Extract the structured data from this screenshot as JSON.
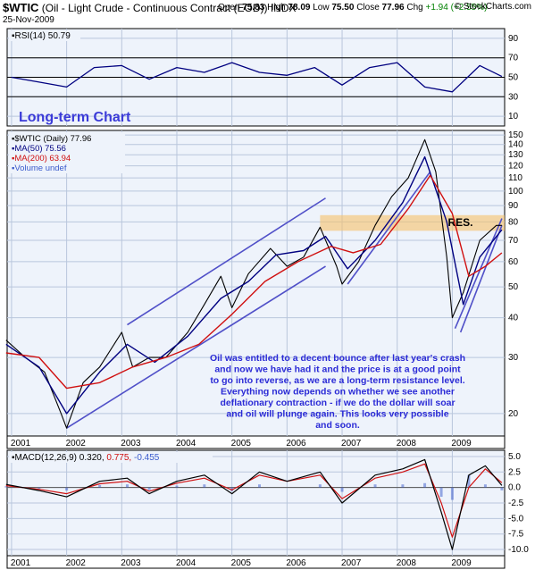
{
  "header": {
    "symbol": "$WTIC",
    "name": "(Oil - Light Crude - Continuous Contract (EOD))",
    "exchange": "INDX",
    "date": "25-Nov-2009",
    "open_label": "Open",
    "open": "75.83",
    "high_label": "High",
    "high": "78.09",
    "low_label": "Low",
    "low": "75.50",
    "close_label": "Close",
    "close": "77.96",
    "chg_label": "Chg",
    "chg": "+1.94 (+2.55%)",
    "brand": "© StockCharts.com"
  },
  "colors": {
    "panel_bg": "#eef3fb",
    "grid": "#b9c6dc",
    "price": "#000000",
    "ma50": "#000080",
    "ma200": "#d01010",
    "trendline": "#5050c8",
    "resistance_band": "#f6c26a",
    "annotation_text": "#2b2bd6",
    "macd": "#000000",
    "signal": "#d01010",
    "histogram": "#3b5bcc"
  },
  "chart_data": [
    {
      "type": "line",
      "panel": "rsi",
      "legend": "RSI(14) 50.79",
      "y_ticks": [
        10,
        30,
        50,
        70,
        90
      ],
      "ylim": [
        0,
        100
      ],
      "reference_lines": [
        70,
        50,
        30
      ],
      "x": [
        "2001",
        "2001.5",
        "2002",
        "2002.5",
        "2003",
        "2003.5",
        "2004",
        "2004.5",
        "2005",
        "2005.5",
        "2006",
        "2006.5",
        "2007",
        "2007.5",
        "2008",
        "2008.5",
        "2009",
        "2009.5",
        "2009.9"
      ],
      "values": [
        50,
        45,
        40,
        60,
        62,
        48,
        60,
        55,
        65,
        55,
        52,
        60,
        42,
        60,
        65,
        40,
        35,
        62,
        50.79
      ]
    },
    {
      "type": "line",
      "panel": "price",
      "scale": "log",
      "title": "Long-term Chart",
      "legend": [
        {
          "name": "$WTIC (Daily)",
          "value": "77.96"
        },
        {
          "name": "MA(50)",
          "value": "75.56"
        },
        {
          "name": "MA(200)",
          "value": "63.94"
        },
        {
          "name": "Volume",
          "value": "undef"
        }
      ],
      "y_ticks": [
        20,
        30,
        40,
        50,
        60,
        70,
        80,
        90,
        100,
        110,
        120,
        130,
        140,
        150
      ],
      "ylim": [
        17,
        155
      ],
      "x_ticks": [
        "2001",
        "2002",
        "2003",
        "2004",
        "2005",
        "2006",
        "2007",
        "2008",
        "2009"
      ],
      "series": [
        {
          "name": "$WTIC (Daily)",
          "x": [
            "2000.9",
            "2001.25",
            "2001.6",
            "2001.9",
            "2002.0",
            "2002.3",
            "2002.6",
            "2003.0",
            "2003.2",
            "2003.5",
            "2003.8",
            "2004.2",
            "2004.5",
            "2004.8",
            "2005.0",
            "2005.3",
            "2005.7",
            "2006.0",
            "2006.3",
            "2006.6",
            "2006.9",
            "2007.0",
            "2007.3",
            "2007.6",
            "2007.9",
            "2008.2",
            "2008.5",
            "2008.7",
            "2008.9",
            "2009.0",
            "2009.2",
            "2009.5",
            "2009.8",
            "2009.9"
          ],
          "values": [
            34,
            30,
            27,
            20,
            18,
            25,
            28,
            36,
            28,
            30,
            30,
            36,
            44,
            54,
            43,
            55,
            66,
            58,
            62,
            77,
            58,
            51,
            60,
            78,
            96,
            110,
            145,
            115,
            62,
            40,
            48,
            70,
            78,
            77.96
          ]
        },
        {
          "name": "MA(50)",
          "x": [
            "2000.9",
            "2001.5",
            "2002.0",
            "2002.6",
            "2003.1",
            "2003.6",
            "2004.2",
            "2004.8",
            "2005.3",
            "2005.8",
            "2006.3",
            "2006.7",
            "2007.1",
            "2007.6",
            "2008.1",
            "2008.5",
            "2008.9",
            "2009.2",
            "2009.5",
            "2009.9"
          ],
          "values": [
            33,
            28,
            20,
            27,
            33,
            29,
            35,
            46,
            52,
            63,
            65,
            72,
            57,
            70,
            92,
            128,
            80,
            44,
            62,
            75.56
          ]
        },
        {
          "name": "MA(200)",
          "x": [
            "2000.9",
            "2001.5",
            "2002.0",
            "2002.6",
            "2003.2",
            "2003.8",
            "2004.4",
            "2005.0",
            "2005.6",
            "2006.2",
            "2006.8",
            "2007.2",
            "2007.7",
            "2008.2",
            "2008.6",
            "2009.0",
            "2009.3",
            "2009.6",
            "2009.9"
          ],
          "values": [
            31,
            30,
            24,
            25,
            28,
            30,
            33,
            41,
            52,
            60,
            67,
            64,
            68,
            88,
            112,
            85,
            54,
            58,
            63.94
          ]
        }
      ],
      "annotations": {
        "resistance_band": [
          75,
          84
        ],
        "resistance_label": "RES.",
        "channel_upper": [
          [
            2003.1,
            38
          ],
          [
            2006.7,
            95
          ]
        ],
        "channel_lower": [
          [
            2002.0,
            18
          ],
          [
            2006.7,
            58
          ]
        ],
        "trend_2007": [
          [
            2007.1,
            51
          ],
          [
            2008.6,
            115
          ]
        ],
        "trend_2009_upper": [
          [
            2009.05,
            37
          ],
          [
            2009.9,
            82
          ]
        ],
        "trend_2009_lower": [
          [
            2009.15,
            36
          ],
          [
            2009.9,
            78
          ]
        ],
        "note_lines": [
          "Oil was entitled to a decent bounce after last year's crash",
          "and now we have had it and the price is at a good point",
          "to go into reverse, as we are a long-term resistance level.",
          "Everything now depends on whether we see another",
          "deflationary contraction - if we do the dollar will soar",
          "and oil will plunge again. This looks very possible",
          "and soon."
        ]
      }
    },
    {
      "type": "line",
      "panel": "macd",
      "legend_label": "MACD(12,26,9)",
      "legend_macd": "0.320",
      "legend_signal": "0.775",
      "legend_hist": "-0.455",
      "y_ticks": [
        "5.0",
        "2.5",
        "0.0",
        "-2.5",
        "-5.0",
        "-7.5",
        "-10.0"
      ],
      "ylim": [
        -11,
        6
      ],
      "x_ticks": [
        "2001",
        "2002",
        "2003",
        "2004",
        "2005",
        "2006",
        "2007",
        "2008",
        "2009"
      ],
      "series": [
        {
          "name": "MACD",
          "x": [
            "2000.9",
            "2001.5",
            "2002.0",
            "2002.6",
            "2003.1",
            "2003.5",
            "2004.0",
            "2004.5",
            "2005.0",
            "2005.5",
            "2006.0",
            "2006.6",
            "2007.0",
            "2007.6",
            "2008.1",
            "2008.5",
            "2008.8",
            "2009.0",
            "2009.3",
            "2009.6",
            "2009.9"
          ],
          "values": [
            0.5,
            -0.5,
            -1.5,
            1.0,
            1.5,
            -1.0,
            1.0,
            2.0,
            -1.0,
            2.5,
            1.0,
            2.5,
            -2.5,
            2.0,
            3.0,
            4.5,
            -4.0,
            -10.0,
            2.0,
            3.5,
            0.32
          ]
        },
        {
          "name": "Signal",
          "x": [
            "2000.9",
            "2001.5",
            "2002.0",
            "2002.6",
            "2003.1",
            "2003.5",
            "2004.0",
            "2004.5",
            "2005.0",
            "2005.5",
            "2006.0",
            "2006.6",
            "2007.0",
            "2007.6",
            "2008.1",
            "2008.5",
            "2008.8",
            "2009.0",
            "2009.3",
            "2009.6",
            "2009.9"
          ],
          "values": [
            0.3,
            -0.3,
            -1.0,
            0.6,
            1.0,
            -0.6,
            0.7,
            1.5,
            -0.4,
            2.0,
            1.0,
            2.0,
            -1.8,
            1.5,
            2.5,
            3.8,
            -2.5,
            -8.0,
            0.0,
            3.0,
            0.775
          ]
        }
      ]
    }
  ]
}
